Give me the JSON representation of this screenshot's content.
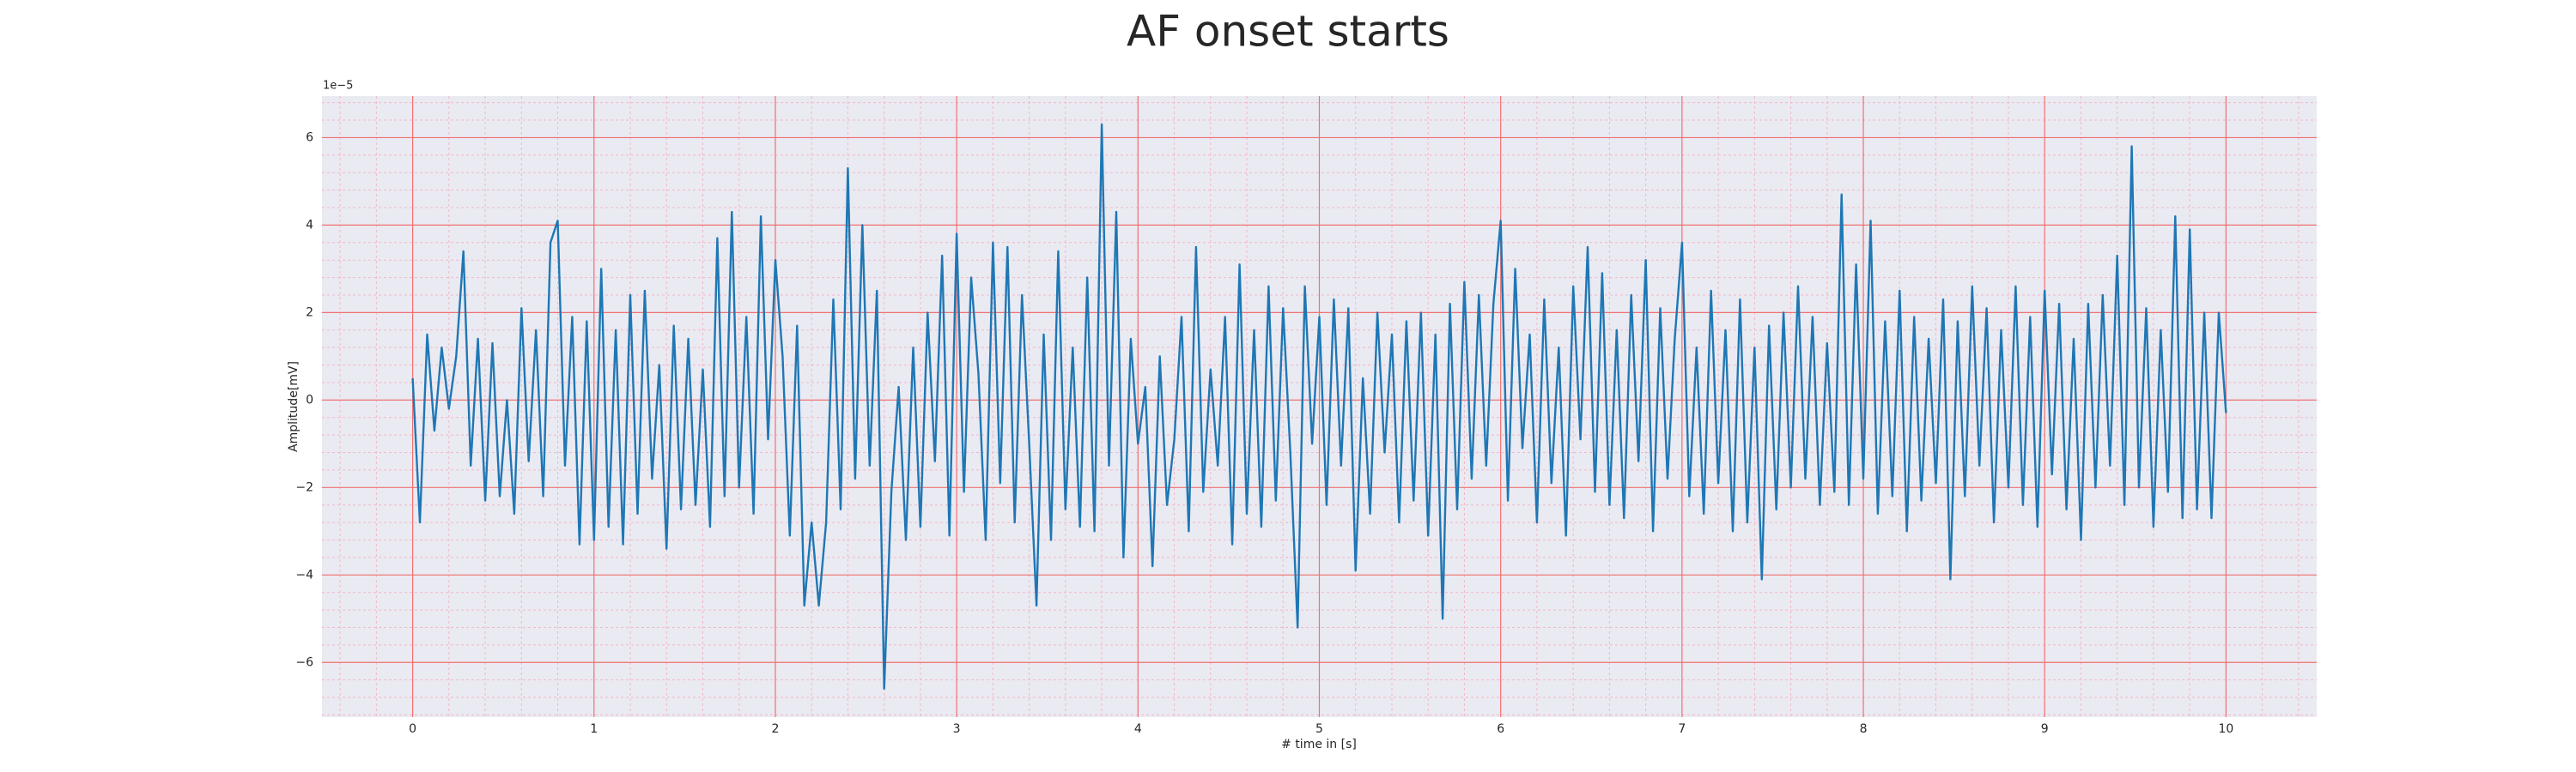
{
  "chart_data": {
    "type": "line",
    "title": "AF onset starts",
    "xlabel": "# time in [s]",
    "ylabel": "Amplitude[mV]",
    "y_offset_label": "1e−5",
    "color": "#1f77b4",
    "background": "#eaeaf2",
    "grid": true,
    "grid_color": "#f07070",
    "minor_grid": true,
    "minor_grid_color": "#f2b8c6",
    "xlim": [
      -0.5,
      10.5
    ],
    "ylim": [
      -7.25,
      6.95
    ],
    "xticks": [
      0,
      1,
      2,
      3,
      4,
      5,
      6,
      7,
      8,
      9,
      10
    ],
    "yticks": [
      {
        "value": -6,
        "label": "−6"
      },
      {
        "value": -4,
        "label": "−4"
      },
      {
        "value": -2,
        "label": "−2"
      },
      0,
      2,
      4,
      6
    ],
    "x": [
      0,
      0.04,
      0.08,
      0.12,
      0.16,
      0.2,
      0.24,
      0.28,
      0.32,
      0.36,
      0.4,
      0.44,
      0.48,
      0.52,
      0.56,
      0.6,
      0.64,
      0.68,
      0.72,
      0.76,
      0.8,
      0.84,
      0.88,
      0.92,
      0.96,
      1,
      1.04,
      1.08,
      1.12,
      1.16,
      1.2,
      1.24,
      1.28,
      1.32,
      1.36,
      1.4,
      1.44,
      1.48,
      1.52,
      1.56,
      1.6,
      1.64,
      1.68,
      1.72,
      1.76,
      1.8,
      1.84,
      1.88,
      1.92,
      1.96,
      2,
      2.04,
      2.08,
      2.12,
      2.16,
      2.2,
      2.24,
      2.28,
      2.32,
      2.36,
      2.4,
      2.44,
      2.48,
      2.52,
      2.56,
      2.6,
      2.64,
      2.68,
      2.72,
      2.76,
      2.8,
      2.84,
      2.88,
      2.92,
      2.96,
      3,
      3.04,
      3.08,
      3.12,
      3.16,
      3.2,
      3.24,
      3.28,
      3.32,
      3.36,
      3.4,
      3.44,
      3.48,
      3.52,
      3.56,
      3.6,
      3.64,
      3.68,
      3.72,
      3.76,
      3.8,
      3.84,
      3.88,
      3.92,
      3.96,
      4,
      4.04,
      4.08,
      4.12,
      4.16,
      4.2,
      4.24,
      4.28,
      4.32,
      4.36,
      4.4,
      4.44,
      4.48,
      4.52,
      4.56,
      4.6,
      4.64,
      4.68,
      4.72,
      4.76,
      4.8,
      4.84,
      4.88,
      4.92,
      4.96,
      5,
      5.04,
      5.08,
      5.12,
      5.16,
      5.2,
      5.24,
      5.28,
      5.32,
      5.36,
      5.4,
      5.44,
      5.48,
      5.52,
      5.56,
      5.6,
      5.64,
      5.68,
      5.72,
      5.76,
      5.8,
      5.84,
      5.88,
      5.92,
      5.96,
      6,
      6.04,
      6.08,
      6.12,
      6.16,
      6.2,
      6.24,
      6.28,
      6.32,
      6.36,
      6.4,
      6.44,
      6.48,
      6.52,
      6.56,
      6.6,
      6.64,
      6.68,
      6.72,
      6.76,
      6.8,
      6.84,
      6.88,
      6.92,
      6.96,
      7,
      7.04,
      7.08,
      7.12,
      7.16,
      7.2,
      7.24,
      7.28,
      7.32,
      7.36,
      7.4,
      7.44,
      7.48,
      7.52,
      7.56,
      7.6,
      7.64,
      7.68,
      7.72,
      7.76,
      7.8,
      7.84,
      7.88,
      7.92,
      7.96,
      8,
      8.04,
      8.08,
      8.12,
      8.16,
      8.2,
      8.24,
      8.28,
      8.32,
      8.36,
      8.4,
      8.44,
      8.48,
      8.52,
      8.56,
      8.6,
      8.64,
      8.68,
      8.72,
      8.76,
      8.8,
      8.84,
      8.88,
      8.92,
      8.96,
      9,
      9.04,
      9.08,
      9.12,
      9.16,
      9.2,
      9.24,
      9.28,
      9.32,
      9.36,
      9.4,
      9.44,
      9.48,
      9.52,
      9.56,
      9.6,
      9.64,
      9.68,
      9.72,
      9.76,
      9.8,
      9.84,
      9.88,
      9.92,
      9.96,
      10
    ],
    "values": [
      0.5,
      -2.8,
      1.5,
      -0.7,
      1.2,
      -0.2,
      1.0,
      3.4,
      -1.5,
      1.4,
      -2.3,
      1.3,
      -2.2,
      0.0,
      -2.6,
      2.1,
      -1.4,
      1.6,
      -2.2,
      3.6,
      4.1,
      -1.5,
      1.9,
      -3.3,
      1.8,
      -3.2,
      3.0,
      -2.9,
      1.6,
      -3.3,
      2.4,
      -2.6,
      2.5,
      -1.8,
      0.8,
      -3.4,
      1.7,
      -2.5,
      1.4,
      -2.4,
      0.7,
      -2.9,
      3.7,
      -2.2,
      4.3,
      -2.0,
      1.9,
      -2.6,
      4.2,
      -0.9,
      3.2,
      1.0,
      -3.1,
      1.7,
      -4.7,
      -2.8,
      -4.7,
      -2.8,
      2.3,
      -2.5,
      5.3,
      -1.8,
      4.0,
      -1.5,
      2.5,
      -6.6,
      -2.1,
      0.3,
      -3.2,
      1.2,
      -2.9,
      2.0,
      -1.4,
      3.3,
      -3.1,
      3.8,
      -2.1,
      2.8,
      0.6,
      -3.2,
      3.6,
      -1.9,
      3.5,
      -2.8,
      2.4,
      -1.0,
      -4.7,
      1.5,
      -3.2,
      3.4,
      -2.5,
      1.2,
      -2.9,
      2.8,
      -3.0,
      6.3,
      -1.5,
      4.3,
      -3.6,
      1.4,
      -1.0,
      0.3,
      -3.8,
      1.0,
      -2.4,
      -0.9,
      1.9,
      -3.0,
      3.5,
      -2.1,
      0.7,
      -1.5,
      1.9,
      -3.3,
      3.1,
      -2.6,
      1.6,
      -2.9,
      2.6,
      -2.3,
      2.1,
      -1.2,
      -5.2,
      2.6,
      -1.0,
      1.9,
      -2.4,
      2.3,
      -1.5,
      2.1,
      -3.9,
      0.5,
      -2.6,
      2.0,
      -1.2,
      1.5,
      -2.8,
      1.8,
      -2.3,
      2.0,
      -3.1,
      1.5,
      -5.0,
      2.2,
      -2.5,
      2.7,
      -1.8,
      2.4,
      -1.5,
      2.2,
      4.1,
      -2.3,
      3.0,
      -1.1,
      1.5,
      -2.8,
      2.3,
      -1.9,
      1.2,
      -3.1,
      2.6,
      -0.9,
      3.5,
      -2.1,
      2.9,
      -2.4,
      1.6,
      -2.7,
      2.4,
      -1.4,
      3.2,
      -3.0,
      2.1,
      -1.8,
      1.4,
      3.6,
      -2.2,
      1.2,
      -2.6,
      2.5,
      -1.9,
      1.6,
      -3.0,
      2.3,
      -2.8,
      1.2,
      -4.1,
      1.7,
      -2.5,
      2.0,
      -2.0,
      2.6,
      -1.8,
      1.9,
      -2.4,
      1.3,
      -2.1,
      4.7,
      -2.4,
      3.1,
      -1.8,
      4.1,
      -2.6,
      1.8,
      -2.2,
      2.5,
      -3.0,
      1.9,
      -2.3,
      1.4,
      -1.9,
      2.3,
      -4.1,
      1.8,
      -2.2,
      2.6,
      -1.5,
      2.1,
      -2.8,
      1.6,
      -2.0,
      2.6,
      -2.4,
      1.9,
      -2.9,
      2.5,
      -1.7,
      2.2,
      -2.5,
      1.4,
      -3.2,
      2.2,
      -2.0,
      2.4,
      -1.5,
      3.3,
      -2.4,
      5.8,
      -2.0,
      2.1,
      -2.9,
      1.6,
      -2.1,
      4.2,
      -2.7,
      3.9,
      -2.5,
      2.0,
      -2.7,
      2.0,
      -0.3
    ]
  }
}
